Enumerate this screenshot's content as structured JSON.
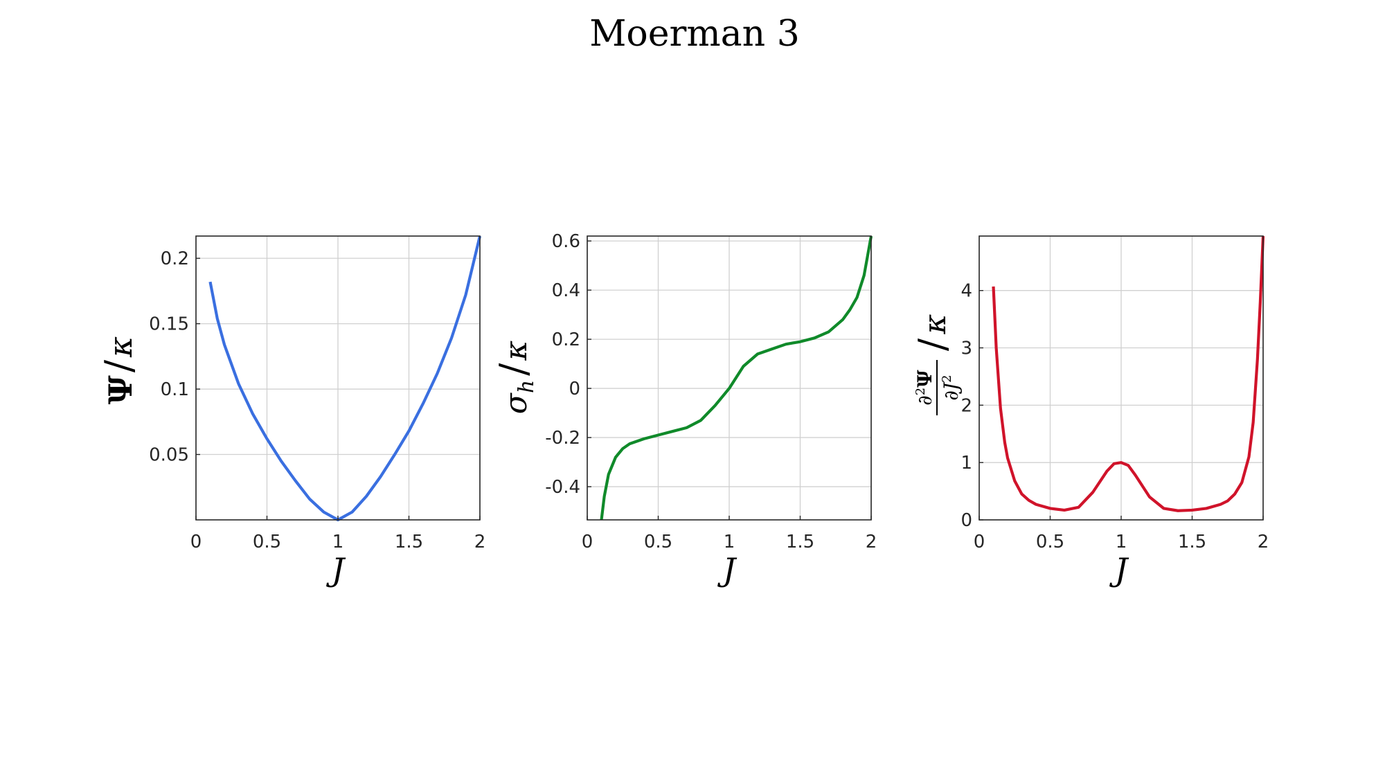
{
  "figure": {
    "title": "Moerman 3"
  },
  "chart_data": [
    {
      "type": "line",
      "id": "psi",
      "xlabel": "J",
      "ylabel": "Ψ/κ",
      "xlim": [
        0,
        2
      ],
      "ylim": [
        0,
        0.217
      ],
      "xticks": [
        0,
        0.5,
        1,
        1.5,
        2
      ],
      "xtick_labels": [
        "0",
        "0.5",
        "1",
        "1.5",
        "2"
      ],
      "yticks": [
        0.05,
        0.1,
        0.15,
        0.2
      ],
      "ytick_labels": [
        "0.05",
        "0.1",
        "0.15",
        "0.2"
      ],
      "grid": true,
      "color": "#3a6fe0",
      "x": [
        0.1,
        0.15,
        0.2,
        0.3,
        0.4,
        0.5,
        0.6,
        0.7,
        0.8,
        0.9,
        1.0,
        1.1,
        1.2,
        1.3,
        1.4,
        1.5,
        1.6,
        1.7,
        1.8,
        1.9,
        2.0
      ],
      "y": [
        0.182,
        0.154,
        0.134,
        0.104,
        0.081,
        0.062,
        0.045,
        0.03,
        0.016,
        0.006,
        0.0,
        0.006,
        0.018,
        0.033,
        0.05,
        0.068,
        0.089,
        0.112,
        0.139,
        0.172,
        0.217
      ]
    },
    {
      "type": "line",
      "id": "sigma",
      "xlabel": "J",
      "ylabel": "σh/κ",
      "xlim": [
        0,
        2
      ],
      "ylim": [
        -0.535,
        0.62
      ],
      "xticks": [
        0,
        0.5,
        1,
        1.5,
        2
      ],
      "xtick_labels": [
        "0",
        "0.5",
        "1",
        "1.5",
        "2"
      ],
      "yticks": [
        -0.4,
        -0.2,
        0,
        0.2,
        0.4,
        0.6
      ],
      "ytick_labels": [
        "-0.4",
        "-0.2",
        "0",
        "0.2",
        "0.4",
        "0.6"
      ],
      "grid": true,
      "color": "#108a2a",
      "x": [
        0.1,
        0.12,
        0.15,
        0.2,
        0.25,
        0.3,
        0.4,
        0.5,
        0.6,
        0.7,
        0.8,
        0.9,
        1.0,
        1.1,
        1.2,
        1.3,
        1.4,
        1.5,
        1.6,
        1.7,
        1.8,
        1.85,
        1.9,
        1.95,
        2.0
      ],
      "y": [
        -0.535,
        -0.44,
        -0.35,
        -0.28,
        -0.245,
        -0.225,
        -0.205,
        -0.19,
        -0.175,
        -0.16,
        -0.13,
        -0.07,
        0.0,
        0.09,
        0.14,
        0.16,
        0.18,
        0.19,
        0.205,
        0.23,
        0.28,
        0.32,
        0.37,
        0.46,
        0.62
      ]
    },
    {
      "type": "line",
      "id": "stiffness",
      "xlabel": "J",
      "ylabel": "∂²Ψ/∂J² /κ",
      "xlim": [
        0,
        2
      ],
      "ylim": [
        0,
        4.95
      ],
      "xticks": [
        0,
        0.5,
        1,
        1.5,
        2
      ],
      "xtick_labels": [
        "0",
        "0.5",
        "1",
        "1.5",
        "2"
      ],
      "yticks": [
        0,
        1,
        2,
        3,
        4
      ],
      "ytick_labels": [
        "0",
        "1",
        "2",
        "3",
        "4"
      ],
      "grid": true,
      "color": "#d0132a",
      "x": [
        0.1,
        0.12,
        0.15,
        0.18,
        0.2,
        0.25,
        0.3,
        0.35,
        0.4,
        0.5,
        0.6,
        0.7,
        0.8,
        0.9,
        0.95,
        1.0,
        1.05,
        1.1,
        1.2,
        1.3,
        1.4,
        1.5,
        1.6,
        1.7,
        1.75,
        1.8,
        1.85,
        1.9,
        1.93,
        1.96,
        1.98,
        2.0
      ],
      "y": [
        4.07,
        3.0,
        1.95,
        1.35,
        1.08,
        0.68,
        0.45,
        0.34,
        0.27,
        0.2,
        0.17,
        0.22,
        0.48,
        0.85,
        0.98,
        1.0,
        0.95,
        0.78,
        0.4,
        0.2,
        0.16,
        0.17,
        0.2,
        0.27,
        0.33,
        0.45,
        0.65,
        1.1,
        1.7,
        2.8,
        3.8,
        4.95
      ]
    }
  ]
}
